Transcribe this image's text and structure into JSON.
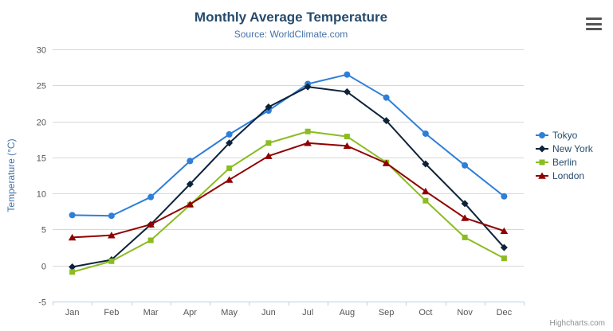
{
  "header": {
    "title": "Monthly Average Temperature",
    "subtitle": "Source: WorldClimate.com"
  },
  "credits": "Highcharts.com",
  "chart_data": {
    "type": "line",
    "title": "Monthly Average Temperature",
    "subtitle": "Source: WorldClimate.com",
    "categories": [
      "Jan",
      "Feb",
      "Mar",
      "Apr",
      "May",
      "Jun",
      "Jul",
      "Aug",
      "Sep",
      "Oct",
      "Nov",
      "Dec"
    ],
    "series": [
      {
        "name": "Tokyo",
        "color": "#2f7ed8",
        "marker": "circle",
        "values": [
          7.0,
          6.9,
          9.5,
          14.5,
          18.2,
          21.5,
          25.2,
          26.5,
          23.3,
          18.3,
          13.9,
          9.6
        ]
      },
      {
        "name": "New York",
        "color": "#0d233a",
        "marker": "diamond",
        "values": [
          -0.2,
          0.8,
          5.7,
          11.3,
          17.0,
          22.0,
          24.8,
          24.1,
          20.1,
          14.1,
          8.6,
          2.5
        ]
      },
      {
        "name": "Berlin",
        "color": "#8bbc21",
        "marker": "square",
        "values": [
          -0.9,
          0.6,
          3.5,
          8.4,
          13.5,
          17.0,
          18.6,
          17.9,
          14.3,
          9.0,
          3.9,
          1.0
        ]
      },
      {
        "name": "London",
        "color": "#910000",
        "marker": "triangle",
        "values": [
          3.9,
          4.2,
          5.7,
          8.5,
          11.9,
          15.2,
          17.0,
          16.6,
          14.2,
          10.3,
          6.6,
          4.8
        ]
      }
    ],
    "xlabel": "",
    "ylabel": "Temperature (°C)",
    "ylim": [
      -5,
      30
    ],
    "ytick_interval": 5,
    "grid": true,
    "legend_position": "right",
    "colors": {
      "title": "#274b6d",
      "subtitle": "#4572a7",
      "axis_title": "#4572a7",
      "gridline": "#d8d8d8",
      "axis_line": "#c0d0e0"
    }
  }
}
